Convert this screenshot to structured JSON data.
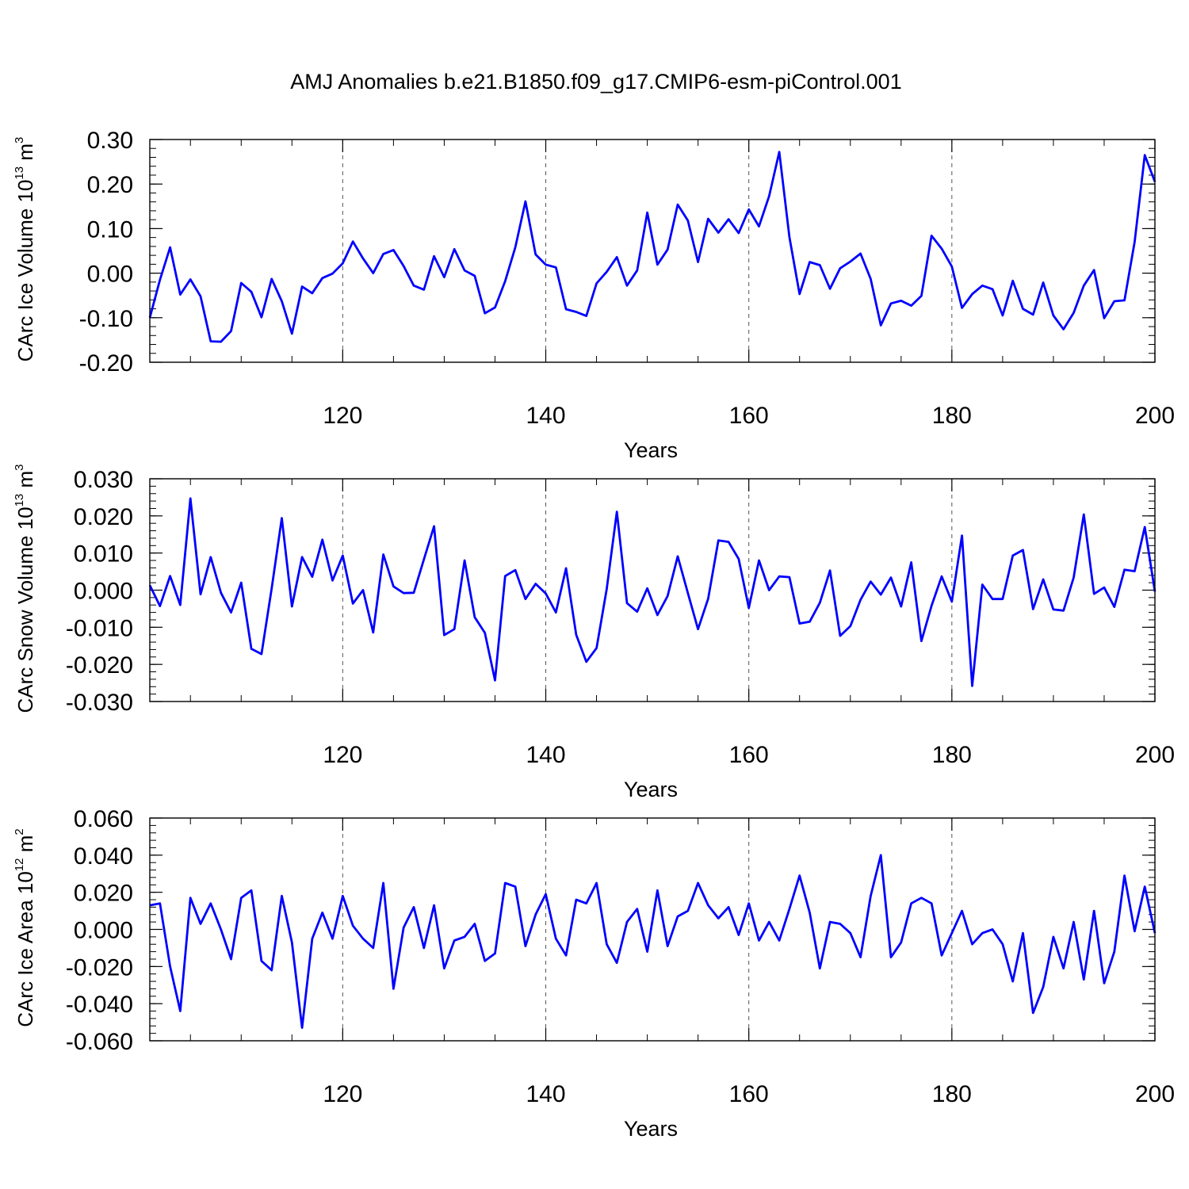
{
  "chart_data": [
    {
      "type": "line",
      "title": "AMJ Anomalies b.e21.B1850.f09_g17.CMIP6-esm-piControl.001",
      "ylabel": "CArc Ice Volume 10",
      "ylabel_exp": "13",
      "ylabel_unit": "m",
      "ylabel_unit_exp": "3",
      "xlabel": "Years",
      "xlim": [
        101,
        200
      ],
      "ylim": [
        -0.2,
        0.3
      ],
      "xticks": [
        120,
        140,
        160,
        180,
        200
      ],
      "xtick_labels": [
        "120",
        "140",
        "160",
        "180",
        "200"
      ],
      "yticks": [
        -0.2,
        -0.1,
        0.0,
        0.1,
        0.2,
        0.3
      ],
      "ytick_labels": [
        "-0.20",
        "-0.10",
        "0.00",
        "0.10",
        "0.20",
        "0.30"
      ],
      "grid": "vertical-dashed",
      "color": "#0000ff",
      "x_start": 101,
      "values": [
        -0.1,
        -0.015,
        0.058,
        -0.048,
        -0.014,
        -0.052,
        -0.153,
        -0.154,
        -0.13,
        -0.022,
        -0.042,
        -0.099,
        -0.013,
        -0.063,
        -0.136,
        -0.03,
        -0.045,
        -0.011,
        -0.001,
        0.022,
        0.071,
        0.033,
        0.0,
        0.043,
        0.052,
        0.016,
        -0.028,
        -0.037,
        0.038,
        -0.009,
        0.054,
        0.006,
        -0.006,
        -0.09,
        -0.077,
        -0.018,
        0.058,
        0.161,
        0.042,
        0.019,
        0.013,
        -0.081,
        -0.087,
        -0.096,
        -0.023,
        0.003,
        0.036,
        -0.028,
        0.006,
        0.136,
        0.019,
        0.053,
        0.154,
        0.118,
        0.025,
        0.122,
        0.091,
        0.121,
        0.09,
        0.143,
        0.105,
        0.173,
        0.272,
        0.081,
        -0.047,
        0.025,
        0.018,
        -0.035,
        0.011,
        0.026,
        0.044,
        -0.013,
        -0.117,
        -0.068,
        -0.062,
        -0.073,
        -0.051,
        0.084,
        0.055,
        0.015,
        -0.078,
        -0.047,
        -0.028,
        -0.036,
        -0.095,
        -0.017,
        -0.08,
        -0.093,
        -0.021,
        -0.095,
        -0.126,
        -0.089,
        -0.028,
        0.007,
        -0.101,
        -0.063,
        -0.061,
        0.07,
        0.265,
        0.205
      ]
    },
    {
      "type": "line",
      "ylabel": "CArc Snow Volume 10",
      "ylabel_exp": "13",
      "ylabel_unit": "m",
      "ylabel_unit_exp": "3",
      "xlabel": "Years",
      "xlim": [
        101,
        200
      ],
      "ylim": [
        -0.03,
        0.03
      ],
      "xticks": [
        120,
        140,
        160,
        180,
        200
      ],
      "xtick_labels": [
        "120",
        "140",
        "160",
        "180",
        "200"
      ],
      "yticks": [
        -0.03,
        -0.02,
        -0.01,
        0.0,
        0.01,
        0.02,
        0.03
      ],
      "ytick_labels": [
        "-0.030",
        "-0.020",
        "-0.010",
        "0.000",
        "0.010",
        "0.020",
        "0.030"
      ],
      "grid": "vertical-dashed",
      "color": "#0000ff",
      "x_start": 101,
      "values": [
        0.0013,
        -0.0043,
        0.0038,
        -0.004,
        0.0247,
        -0.0011,
        0.0089,
        -0.0007,
        -0.006,
        0.002,
        -0.0158,
        -0.0172,
        0.0004,
        0.0194,
        -0.0044,
        0.0089,
        0.0036,
        0.0136,
        0.0026,
        0.0093,
        -0.0036,
        0.0,
        -0.0114,
        0.0096,
        0.001,
        -0.0008,
        -0.0007,
        0.0083,
        0.0172,
        -0.0121,
        -0.0105,
        0.008,
        -0.0073,
        -0.0115,
        -0.0243,
        0.0038,
        0.0054,
        -0.0024,
        0.0017,
        -0.0009,
        -0.006,
        0.0059,
        -0.012,
        -0.0193,
        -0.0156,
        0.0003,
        0.0211,
        -0.0035,
        -0.0058,
        0.0005,
        -0.0067,
        -0.0016,
        0.0091,
        -0.0008,
        -0.0105,
        -0.0023,
        0.0134,
        0.013,
        0.0084,
        -0.0048,
        0.008,
        0.0,
        0.0037,
        0.0035,
        -0.009,
        -0.0085,
        -0.0034,
        0.0053,
        -0.0123,
        -0.0097,
        -0.0026,
        0.0023,
        -0.0012,
        0.0034,
        -0.0044,
        0.0075,
        -0.0137,
        -0.0042,
        0.0037,
        -0.0031,
        0.0147,
        -0.0258,
        0.0015,
        -0.0024,
        -0.0024,
        0.0093,
        0.0108,
        -0.0051,
        0.0029,
        -0.0052,
        -0.0055,
        0.0034,
        0.0204,
        -0.001,
        0.0007,
        -0.0045,
        0.0055,
        0.0051,
        0.017,
        -0.0004
      ]
    },
    {
      "type": "line",
      "ylabel": "CArc Ice Area 10",
      "ylabel_exp": "12",
      "ylabel_unit": "m",
      "ylabel_unit_exp": "2",
      "xlabel": "Years",
      "xlim": [
        101,
        200
      ],
      "ylim": [
        -0.06,
        0.06
      ],
      "xticks": [
        120,
        140,
        160,
        180,
        200
      ],
      "xtick_labels": [
        "120",
        "140",
        "160",
        "180",
        "200"
      ],
      "yticks": [
        -0.06,
        -0.04,
        -0.02,
        0.0,
        0.02,
        0.04,
        0.06
      ],
      "ytick_labels": [
        "-0.060",
        "-0.040",
        "-0.020",
        "0.000",
        "0.020",
        "0.040",
        "0.060"
      ],
      "grid": "vertical-dashed",
      "color": "#0000ff",
      "x_start": 101,
      "values": [
        0.013,
        0.014,
        -0.02,
        -0.044,
        0.017,
        0.003,
        0.014,
        0.0,
        -0.016,
        0.017,
        0.021,
        -0.017,
        -0.022,
        0.018,
        -0.007,
        -0.053,
        -0.005,
        0.009,
        -0.005,
        0.018,
        0.002,
        -0.005,
        -0.01,
        0.025,
        -0.032,
        0.001,
        0.012,
        -0.01,
        0.013,
        -0.021,
        -0.006,
        -0.004,
        0.003,
        -0.017,
        -0.013,
        0.025,
        0.023,
        -0.009,
        0.008,
        0.019,
        -0.005,
        -0.014,
        0.016,
        0.014,
        0.025,
        -0.008,
        -0.018,
        0.004,
        0.011,
        -0.012,
        0.021,
        -0.009,
        0.007,
        0.01,
        0.025,
        0.013,
        0.006,
        0.012,
        -0.003,
        0.014,
        -0.006,
        0.004,
        -0.006,
        0.011,
        0.029,
        0.009,
        -0.021,
        0.004,
        0.003,
        -0.002,
        -0.015,
        0.018,
        0.04,
        -0.015,
        -0.007,
        0.014,
        0.017,
        0.014,
        -0.014,
        -0.002,
        0.01,
        -0.008,
        -0.002,
        0.0,
        -0.008,
        -0.028,
        -0.002,
        -0.045,
        -0.031,
        -0.004,
        -0.021,
        0.004,
        -0.027,
        0.01,
        -0.029,
        -0.012,
        0.029,
        -0.001,
        0.023,
        -0.002
      ]
    }
  ]
}
